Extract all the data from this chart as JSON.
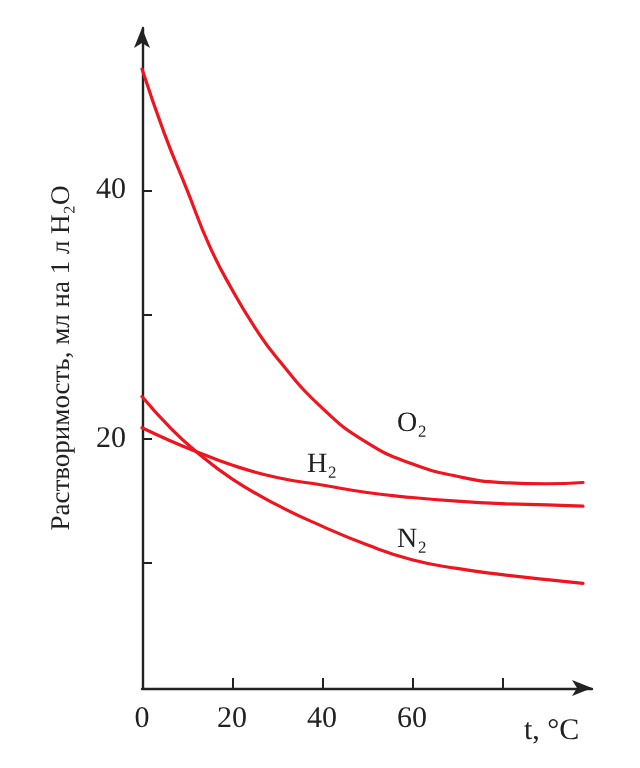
{
  "chart_data": {
    "type": "line",
    "xlabel": "t, °C",
    "ylabel": "Растворимость, мл на 1 л H₂O",
    "xlim": [
      0,
      100
    ],
    "ylim": [
      0,
      53
    ],
    "xticks": [
      0,
      20,
      40,
      60,
      {
        "value": 80,
        "label": null
      }
    ],
    "yticks": [
      {
        "value": 10,
        "label": null
      },
      20,
      {
        "value": 30,
        "label": null
      },
      40
    ],
    "grid": false,
    "legend": false,
    "marker": "none",
    "line_style": "solid",
    "series": [
      {
        "name": "O₂",
        "color": "#f0141e",
        "x": [
          0,
          5,
          10,
          15,
          20,
          25,
          30,
          40,
          50,
          60,
          70,
          80,
          90,
          98
        ],
        "values": [
          49.7,
          44.5,
          40,
          35.5,
          32,
          29,
          26.5,
          22.5,
          19.7,
          18,
          17,
          16.5,
          16.4,
          16.5
        ]
      },
      {
        "name": "H₂",
        "color": "#f0141e",
        "x": [
          0,
          6,
          12,
          20,
          30,
          40,
          50,
          60,
          70,
          80,
          90,
          98
        ],
        "values": [
          20.9,
          19.9,
          19,
          17.9,
          16.9,
          16.3,
          15.7,
          15.3,
          15,
          14.8,
          14.7,
          14.6
        ]
      },
      {
        "name": "N₂",
        "color": "#f0141e",
        "x": [
          0,
          6,
          12,
          20,
          30,
          40,
          50,
          60,
          70,
          80,
          90,
          98
        ],
        "values": [
          23.4,
          21,
          19,
          16.8,
          14.7,
          13,
          11.5,
          10.3,
          9.6,
          9.1,
          8.7,
          8.4
        ]
      }
    ]
  }
}
